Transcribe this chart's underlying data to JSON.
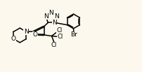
{
  "background_color": "#fdf8ee",
  "figsize": [
    2.02,
    1.03
  ],
  "dpi": 100,
  "line_color": "#000000",
  "line_width": 1.1,
  "font_size": 6.5,
  "atom_font_color": "#000000",
  "xlim": [
    0,
    10
  ],
  "ylim": [
    0,
    5.1
  ]
}
